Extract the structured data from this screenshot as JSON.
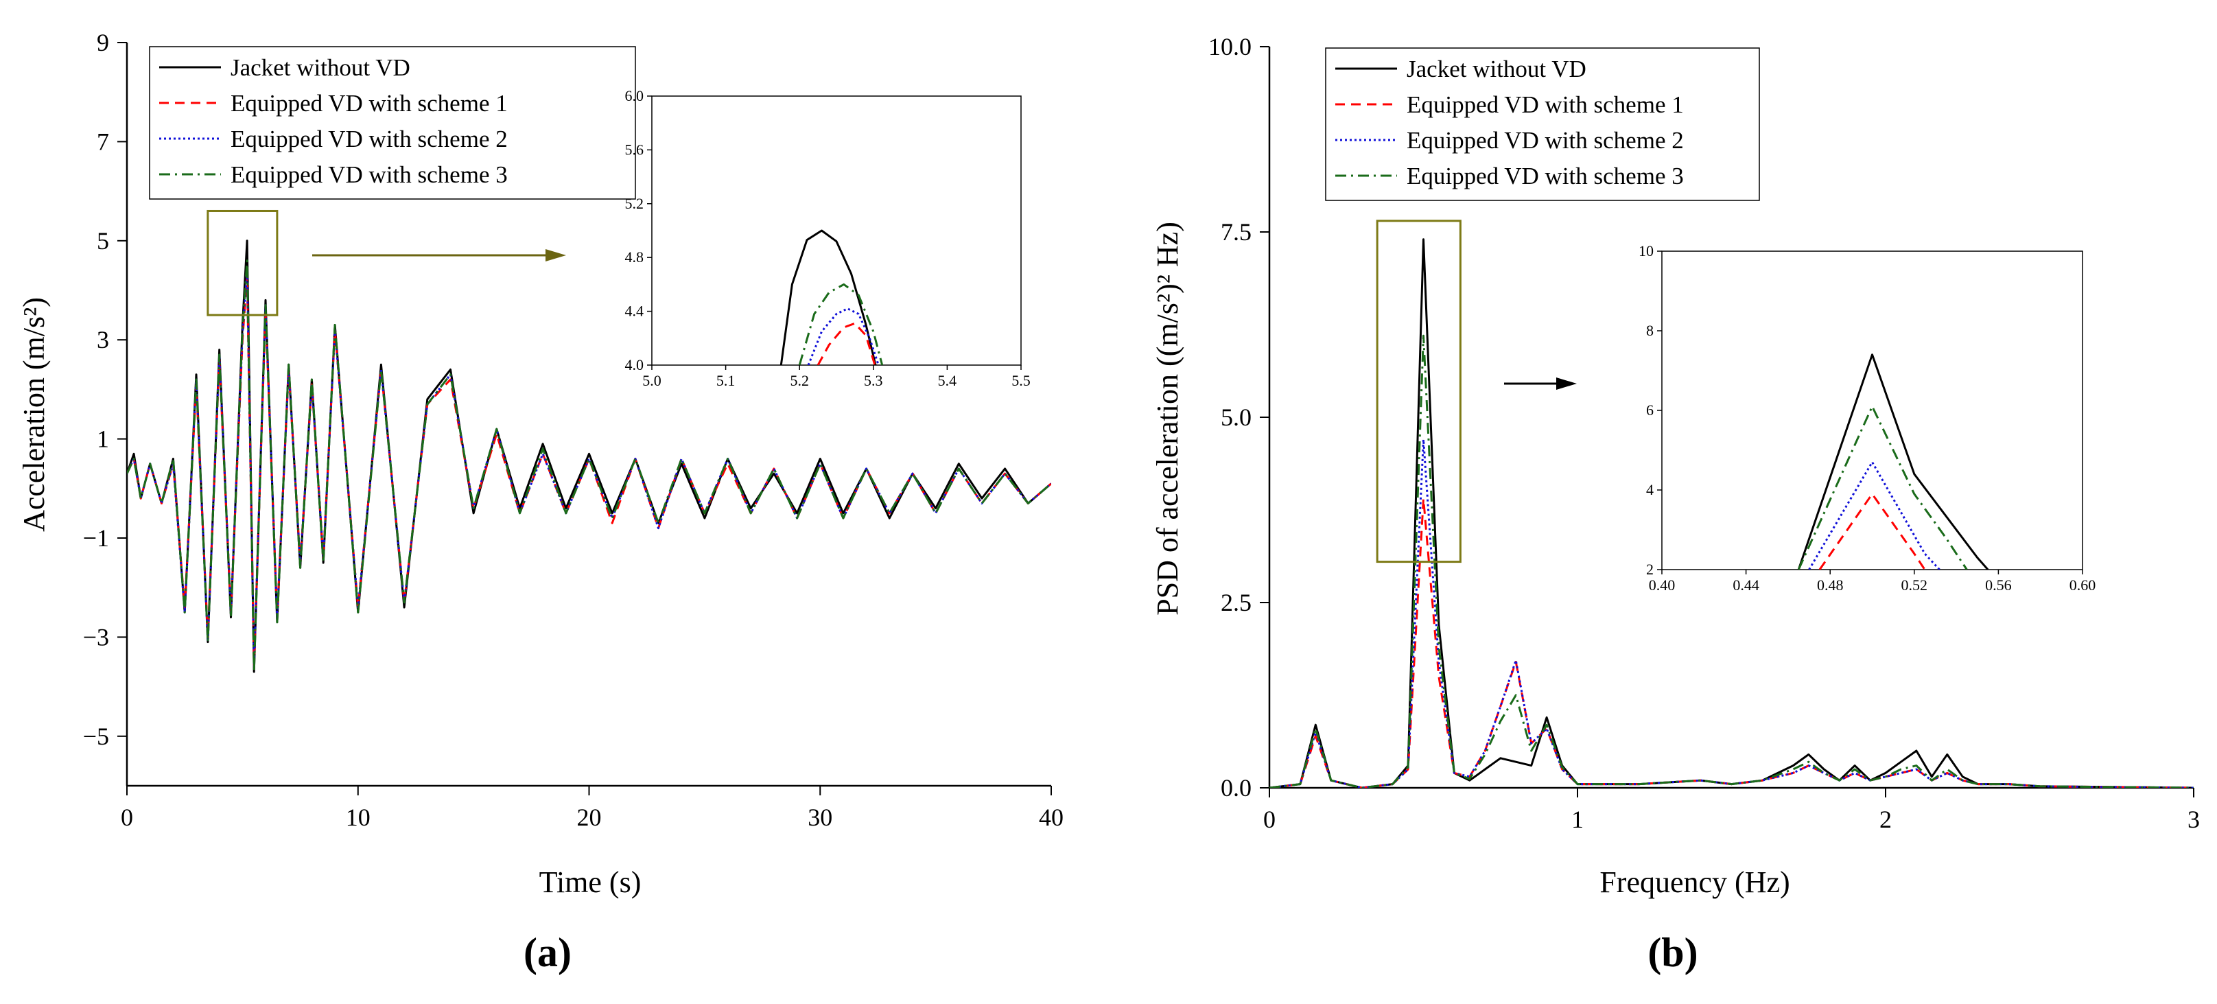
{
  "panel_labels": {
    "a": "(a)",
    "b": "(b)"
  },
  "legend": {
    "items": [
      {
        "name": "Jacket without VD",
        "color": "#000000",
        "dash": "solid"
      },
      {
        "name": "Equipped VD with scheme 1",
        "color": "#ff0000",
        "dash": "dash"
      },
      {
        "name": "Equipped VD with scheme 2",
        "color": "#1010d8",
        "dash": "dot"
      },
      {
        "name": "Equipped VD with scheme 3",
        "color": "#1a6b1a",
        "dash": "dashdot"
      }
    ]
  },
  "colors": {
    "zoom_box": "#7d7a16",
    "zoom_arrow_a": "#6b6512",
    "zoom_arrow_b": "#000000"
  },
  "chart_data": [
    {
      "type": "line",
      "id": "a",
      "xlabel": "Time (s)",
      "ylabel": "Acceleration (m/s²)",
      "xlim": [
        0,
        40
      ],
      "ylim": [
        -6,
        9
      ],
      "xticks": [
        "0",
        "10",
        "20",
        "30",
        "40"
      ],
      "yticks": [
        "-5",
        "-3",
        "-1",
        "1",
        "3",
        "5",
        "7",
        "9"
      ],
      "zoom_box": {
        "x": [
          3.5,
          6.5
        ],
        "y": [
          3.5,
          5.6
        ]
      },
      "series": [
        {
          "name": "Jacket without VD",
          "x": [
            0,
            0.3,
            0.6,
            1,
            1.5,
            2,
            2.5,
            3,
            3.5,
            4,
            4.5,
            5,
            5.2,
            5.5,
            6,
            6.5,
            7,
            7.5,
            8,
            8.5,
            9,
            10,
            11,
            12,
            13,
            14,
            15,
            16,
            17,
            18,
            19,
            20,
            21,
            22,
            23,
            24,
            25,
            26,
            27,
            28,
            29,
            30,
            31,
            32,
            33,
            34,
            35,
            36,
            37,
            38,
            39,
            40
          ],
          "y": [
            0.3,
            0.7,
            -0.2,
            0.5,
            -0.3,
            0.6,
            -2.5,
            2.3,
            -3.1,
            2.8,
            -2.6,
            3.3,
            5.0,
            -3.7,
            3.8,
            -2.7,
            2.5,
            -1.6,
            2.2,
            -1.5,
            3.3,
            -2.5,
            2.5,
            -2.4,
            1.8,
            2.4,
            -0.5,
            1.2,
            -0.4,
            0.9,
            -0.4,
            0.7,
            -0.5,
            0.6,
            -0.7,
            0.5,
            -0.6,
            0.6,
            -0.4,
            0.3,
            -0.5,
            0.6,
            -0.5,
            0.4,
            -0.6,
            0.3,
            -0.4,
            0.5,
            -0.2,
            0.4,
            -0.3,
            0.1
          ]
        },
        {
          "name": "Equipped VD with scheme 1",
          "x": [
            0,
            0.3,
            0.6,
            1,
            1.5,
            2,
            2.5,
            3,
            3.5,
            4,
            4.5,
            5,
            5.2,
            5.5,
            6,
            6.5,
            7,
            7.5,
            8,
            8.5,
            9,
            10,
            11,
            12,
            13,
            14,
            15,
            16,
            17,
            18,
            19,
            20,
            21,
            22,
            23,
            24,
            25,
            26,
            27,
            28,
            29,
            30,
            31,
            32,
            33,
            34,
            35,
            36,
            37,
            38,
            39,
            40
          ],
          "y": [
            0.3,
            0.6,
            -0.2,
            0.5,
            -0.3,
            0.5,
            -2.4,
            2.1,
            -3.0,
            2.6,
            -2.5,
            3.0,
            4.3,
            -3.6,
            3.6,
            -2.6,
            2.4,
            -1.5,
            2.1,
            -1.4,
            3.2,
            -2.4,
            2.4,
            -2.3,
            1.7,
            2.2,
            -0.4,
            1.1,
            -0.5,
            0.7,
            -0.5,
            0.6,
            -0.7,
            0.6,
            -0.8,
            0.6,
            -0.5,
            0.5,
            -0.5,
            0.4,
            -0.6,
            0.5,
            -0.6,
            0.4,
            -0.5,
            0.3,
            -0.5,
            0.4,
            -0.3,
            0.3,
            -0.3,
            0.1
          ]
        },
        {
          "name": "Equipped VD with scheme 2",
          "x": [
            0,
            0.3,
            0.6,
            1,
            1.5,
            2,
            2.5,
            3,
            3.5,
            4,
            4.5,
            5,
            5.2,
            5.5,
            6,
            6.5,
            7,
            7.5,
            8,
            8.5,
            9,
            10,
            11,
            12,
            13,
            14,
            15,
            16,
            17,
            18,
            19,
            20,
            21,
            22,
            23,
            24,
            25,
            26,
            27,
            28,
            29,
            30,
            31,
            32,
            33,
            34,
            35,
            36,
            37,
            38,
            39,
            40
          ],
          "y": [
            0.3,
            0.6,
            -0.2,
            0.5,
            -0.3,
            0.5,
            -2.5,
            2.2,
            -3.1,
            2.7,
            -2.5,
            3.1,
            4.4,
            -3.6,
            3.7,
            -2.6,
            2.4,
            -1.5,
            2.1,
            -1.4,
            3.2,
            -2.4,
            2.4,
            -2.3,
            1.7,
            2.3,
            -0.4,
            1.2,
            -0.5,
            0.7,
            -0.5,
            0.6,
            -0.6,
            0.6,
            -0.8,
            0.6,
            -0.5,
            0.6,
            -0.5,
            0.4,
            -0.6,
            0.5,
            -0.6,
            0.4,
            -0.5,
            0.3,
            -0.5,
            0.4,
            -0.3,
            0.3,
            -0.3,
            0.1
          ]
        },
        {
          "name": "Equipped VD with scheme 3",
          "x": [
            0,
            0.3,
            0.6,
            1,
            1.5,
            2,
            2.5,
            3,
            3.5,
            4,
            4.5,
            5,
            5.2,
            5.5,
            6,
            6.5,
            7,
            7.5,
            8,
            8.5,
            9,
            10,
            11,
            12,
            13,
            14,
            15,
            16,
            17,
            18,
            19,
            20,
            21,
            22,
            23,
            24,
            25,
            26,
            27,
            28,
            29,
            30,
            31,
            32,
            33,
            34,
            35,
            36,
            37,
            38,
            39,
            40
          ],
          "y": [
            0.3,
            0.6,
            -0.2,
            0.5,
            -0.3,
            0.6,
            -2.5,
            2.2,
            -3.1,
            2.7,
            -2.6,
            3.2,
            4.6,
            -3.7,
            3.7,
            -2.7,
            2.5,
            -1.6,
            2.2,
            -1.5,
            3.3,
            -2.5,
            2.4,
            -2.3,
            1.7,
            2.3,
            -0.4,
            1.2,
            -0.5,
            0.8,
            -0.5,
            0.6,
            -0.6,
            0.6,
            -0.7,
            0.6,
            -0.5,
            0.6,
            -0.5,
            0.4,
            -0.6,
            0.5,
            -0.6,
            0.4,
            -0.5,
            0.3,
            -0.5,
            0.4,
            -0.3,
            0.3,
            -0.3,
            0.1
          ]
        }
      ],
      "inset": {
        "xlim": [
          5.0,
          5.5
        ],
        "ylim": [
          4.0,
          6.0
        ],
        "xticks": [
          "5.0",
          "5.1",
          "5.2",
          "5.3",
          "5.4",
          "5.5"
        ],
        "yticks": [
          "4.0",
          "4.4",
          "4.8",
          "5.2",
          "5.6",
          "6.0"
        ],
        "series": [
          {
            "name": "Jacket without VD",
            "x": [
              5.175,
              5.19,
              5.21,
              5.23,
              5.25,
              5.27,
              5.29,
              5.303
            ],
            "y": [
              4.0,
              4.6,
              4.93,
              5.0,
              4.92,
              4.68,
              4.3,
              4.0
            ]
          },
          {
            "name": "Equipped VD with scheme 1",
            "x": [
              5.225,
              5.24,
              5.26,
              5.275,
              5.29,
              5.302
            ],
            "y": [
              4.0,
              4.15,
              4.28,
              4.31,
              4.22,
              4.0
            ]
          },
          {
            "name": "Equipped VD with scheme 2",
            "x": [
              5.212,
              5.23,
              5.25,
              5.265,
              5.28,
              5.295,
              5.307
            ],
            "y": [
              4.0,
              4.25,
              4.38,
              4.42,
              4.38,
              4.2,
              4.0
            ]
          },
          {
            "name": "Equipped VD with scheme 3",
            "x": [
              5.2,
              5.22,
              5.24,
              5.26,
              5.28,
              5.3,
              5.312
            ],
            "y": [
              4.0,
              4.38,
              4.54,
              4.6,
              4.52,
              4.25,
              4.0
            ]
          }
        ]
      }
    },
    {
      "type": "line",
      "id": "b",
      "xlabel": "Frequency (Hz)",
      "ylabel": "PSD of acceleration ((m/s²)² Hz)",
      "xlim": [
        0,
        3
      ],
      "ylim": [
        0,
        10
      ],
      "xticks": [
        "0",
        "1",
        "2",
        "3"
      ],
      "yticks": [
        "0.0",
        "2.5",
        "5.0",
        "7.5",
        "10.0"
      ],
      "zoom_box": {
        "x": [
          0.35,
          0.62
        ],
        "y": [
          3.05,
          7.65
        ]
      },
      "series": [
        {
          "name": "Jacket without VD",
          "x": [
            0,
            0.1,
            0.15,
            0.2,
            0.3,
            0.4,
            0.45,
            0.5,
            0.55,
            0.6,
            0.65,
            0.7,
            0.75,
            0.8,
            0.85,
            0.9,
            0.95,
            1.0,
            1.2,
            1.4,
            1.5,
            1.6,
            1.7,
            1.75,
            1.8,
            1.85,
            1.9,
            1.95,
            2.0,
            2.05,
            2.1,
            2.15,
            2.2,
            2.25,
            2.3,
            2.4,
            2.5,
            3.0
          ],
          "y": [
            0,
            0.05,
            0.85,
            0.1,
            0,
            0.05,
            0.3,
            7.4,
            2.2,
            0.2,
            0.1,
            0.25,
            0.4,
            0.35,
            0.3,
            0.95,
            0.3,
            0.05,
            0.05,
            0.1,
            0.05,
            0.1,
            0.3,
            0.45,
            0.25,
            0.1,
            0.3,
            0.1,
            0.2,
            0.35,
            0.5,
            0.15,
            0.45,
            0.15,
            0.05,
            0.05,
            0.02,
            0.0
          ]
        },
        {
          "name": "Equipped VD with scheme 1",
          "x": [
            0,
            0.1,
            0.15,
            0.2,
            0.3,
            0.4,
            0.45,
            0.5,
            0.55,
            0.6,
            0.65,
            0.7,
            0.75,
            0.8,
            0.85,
            0.9,
            0.95,
            1.0,
            1.2,
            1.4,
            1.5,
            1.6,
            1.7,
            1.75,
            1.8,
            1.85,
            1.9,
            1.95,
            2.0,
            2.05,
            2.1,
            2.15,
            2.2,
            2.25,
            2.3,
            2.4,
            2.5,
            3.0
          ],
          "y": [
            0,
            0.05,
            0.7,
            0.1,
            0,
            0.05,
            0.25,
            3.9,
            1.5,
            0.2,
            0.15,
            0.5,
            1.1,
            1.7,
            0.6,
            0.8,
            0.25,
            0.05,
            0.05,
            0.1,
            0.05,
            0.1,
            0.2,
            0.3,
            0.2,
            0.1,
            0.2,
            0.1,
            0.15,
            0.2,
            0.25,
            0.1,
            0.2,
            0.1,
            0.05,
            0.05,
            0.02,
            0.0
          ]
        },
        {
          "name": "Equipped VD with scheme 2",
          "x": [
            0,
            0.1,
            0.15,
            0.2,
            0.3,
            0.4,
            0.45,
            0.5,
            0.55,
            0.6,
            0.65,
            0.7,
            0.75,
            0.8,
            0.85,
            0.9,
            0.95,
            1.0,
            1.2,
            1.4,
            1.5,
            1.6,
            1.7,
            1.75,
            1.8,
            1.85,
            1.9,
            1.95,
            2.0,
            2.05,
            2.1,
            2.15,
            2.2,
            2.25,
            2.3,
            2.4,
            2.5,
            3.0
          ],
          "y": [
            0,
            0.05,
            0.75,
            0.1,
            0,
            0.05,
            0.25,
            4.7,
            1.7,
            0.2,
            0.15,
            0.5,
            1.1,
            1.72,
            0.6,
            0.8,
            0.25,
            0.05,
            0.05,
            0.1,
            0.05,
            0.1,
            0.2,
            0.3,
            0.2,
            0.1,
            0.2,
            0.1,
            0.15,
            0.2,
            0.25,
            0.1,
            0.2,
            0.1,
            0.05,
            0.05,
            0.02,
            0.0
          ]
        },
        {
          "name": "Equipped VD with scheme 3",
          "x": [
            0,
            0.1,
            0.15,
            0.2,
            0.3,
            0.4,
            0.45,
            0.5,
            0.55,
            0.6,
            0.65,
            0.7,
            0.75,
            0.8,
            0.85,
            0.9,
            0.95,
            1.0,
            1.2,
            1.4,
            1.5,
            1.6,
            1.7,
            1.75,
            1.8,
            1.85,
            1.9,
            1.95,
            2.0,
            2.05,
            2.1,
            2.15,
            2.2,
            2.25,
            2.3,
            2.4,
            2.5,
            3.0
          ],
          "y": [
            0,
            0.05,
            0.8,
            0.1,
            0,
            0.05,
            0.28,
            6.1,
            1.9,
            0.2,
            0.12,
            0.45,
            0.9,
            1.25,
            0.5,
            0.85,
            0.28,
            0.05,
            0.05,
            0.1,
            0.05,
            0.1,
            0.25,
            0.35,
            0.2,
            0.1,
            0.25,
            0.1,
            0.15,
            0.25,
            0.3,
            0.1,
            0.25,
            0.1,
            0.05,
            0.05,
            0.02,
            0.0
          ]
        }
      ],
      "inset": {
        "xlim": [
          0.4,
          0.6
        ],
        "ylim": [
          2,
          10
        ],
        "xticks": [
          "0.40",
          "0.44",
          "0.48",
          "0.52",
          "0.56",
          "0.60"
        ],
        "yticks": [
          "2",
          "4",
          "6",
          "8",
          "10"
        ],
        "series": [
          {
            "name": "Jacket without VD",
            "x": [
              0.465,
              0.5,
              0.52,
              0.55,
              0.555
            ],
            "y": [
              2.0,
              7.4,
              4.4,
              2.3,
              2.0
            ]
          },
          {
            "name": "Equipped VD with scheme 1",
            "x": [
              0.475,
              0.5,
              0.52,
              0.525
            ],
            "y": [
              2.0,
              3.9,
              2.4,
              2.0
            ]
          },
          {
            "name": "Equipped VD with scheme 2",
            "x": [
              0.47,
              0.5,
              0.525,
              0.532
            ],
            "y": [
              2.0,
              4.7,
              2.4,
              2.0
            ]
          },
          {
            "name": "Equipped VD with scheme 3",
            "x": [
              0.465,
              0.5,
              0.52,
              0.535,
              0.545
            ],
            "y": [
              2.0,
              6.1,
              3.9,
              2.8,
              2.0
            ]
          }
        ]
      }
    }
  ]
}
